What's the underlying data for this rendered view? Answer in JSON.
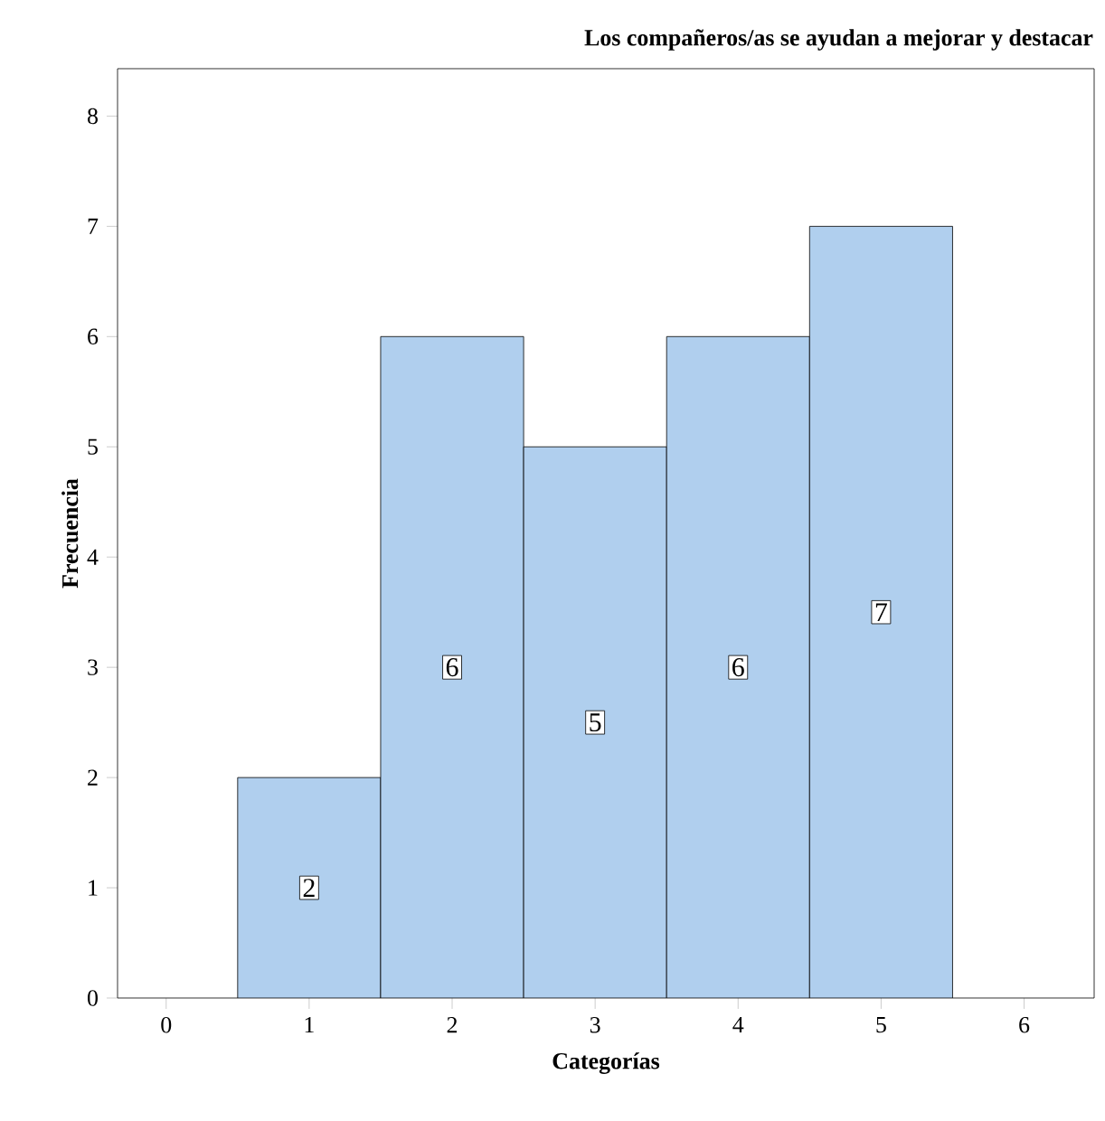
{
  "chart_data": {
    "type": "histogram",
    "title": "Los compañeros/as se ayudan a mejorar y destacar",
    "xlabel": "Categorías",
    "ylabel": "Frecuencia",
    "bins": [
      0.5,
      1.5,
      2.5,
      3.5,
      4.5,
      5.5
    ],
    "values": [
      2,
      6,
      5,
      6,
      7
    ],
    "color": "#b0cfee",
    "xlim": [
      -0.34,
      6.49
    ],
    "ylim": [
      0,
      8.43
    ],
    "xticks": [
      0,
      1,
      2,
      3,
      4,
      5,
      6
    ],
    "yticks": [
      0,
      1,
      2,
      3,
      4,
      5,
      6,
      7,
      8
    ],
    "data_labels": true,
    "grid": false
  }
}
